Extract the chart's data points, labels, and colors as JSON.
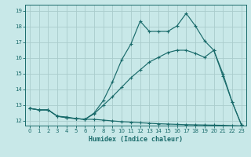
{
  "xlabel": "Humidex (Indice chaleur)",
  "bg_color": "#c8e8e8",
  "grid_color": "#aacccc",
  "line_color": "#1a6b6b",
  "ylim": [
    11.7,
    19.4
  ],
  "xlim": [
    -0.5,
    23.5
  ],
  "yticks": [
    12,
    13,
    14,
    15,
    16,
    17,
    18,
    19
  ],
  "xticks": [
    0,
    1,
    2,
    3,
    4,
    5,
    6,
    7,
    8,
    9,
    10,
    11,
    12,
    13,
    14,
    15,
    16,
    17,
    18,
    19,
    20,
    21,
    22,
    23
  ],
  "line1_x": [
    0,
    1,
    2,
    3,
    4,
    5,
    6,
    7,
    8,
    9,
    10,
    11,
    12,
    13,
    14,
    15,
    16,
    17,
    18,
    19,
    20,
    21,
    22,
    23
  ],
  "line1_y": [
    12.8,
    12.7,
    12.7,
    12.3,
    12.25,
    12.15,
    12.1,
    12.5,
    13.3,
    14.5,
    15.9,
    16.9,
    18.35,
    17.7,
    17.7,
    17.7,
    18.05,
    18.85,
    18.05,
    17.1,
    16.5,
    15.0,
    13.2,
    11.75
  ],
  "line2_x": [
    0,
    1,
    2,
    3,
    4,
    5,
    6,
    7,
    8,
    9,
    10,
    11,
    12,
    13,
    14,
    15,
    16,
    17,
    18,
    19,
    20,
    21,
    22,
    23
  ],
  "line2_y": [
    12.8,
    12.7,
    12.7,
    12.3,
    12.2,
    12.15,
    12.1,
    12.45,
    13.0,
    13.55,
    14.15,
    14.75,
    15.25,
    15.75,
    16.05,
    16.35,
    16.5,
    16.5,
    16.3,
    16.05,
    16.5,
    14.85,
    13.2,
    11.75
  ],
  "line3_x": [
    0,
    1,
    2,
    3,
    4,
    5,
    6,
    7,
    8,
    9,
    10,
    11,
    12,
    13,
    14,
    15,
    16,
    17,
    18,
    19,
    20,
    21,
    22,
    23
  ],
  "line3_y": [
    12.8,
    12.7,
    12.7,
    12.3,
    12.2,
    12.15,
    12.1,
    12.1,
    12.05,
    12.0,
    11.95,
    11.92,
    11.88,
    11.85,
    11.82,
    11.8,
    11.78,
    11.76,
    11.75,
    11.74,
    11.73,
    11.72,
    11.7,
    11.68
  ]
}
